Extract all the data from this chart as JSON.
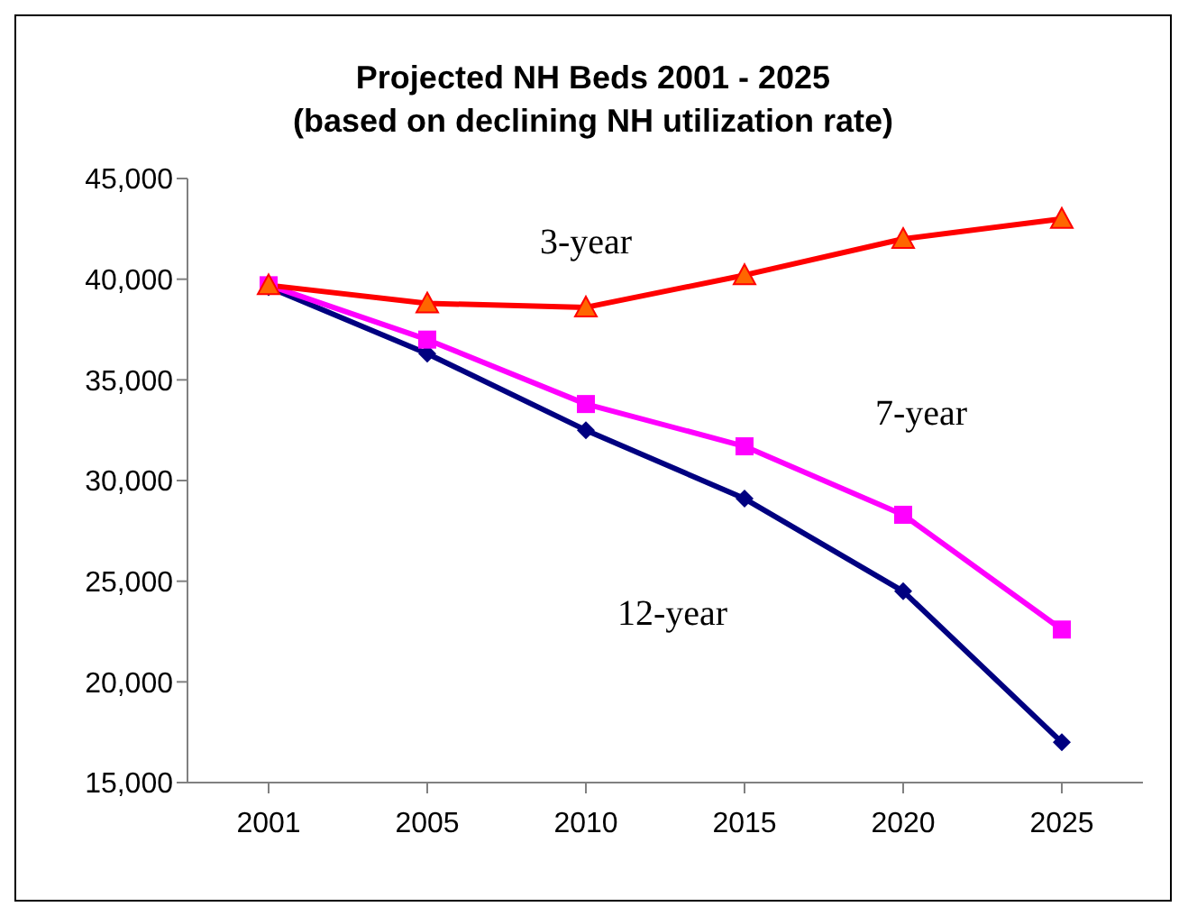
{
  "chart_data": {
    "type": "line",
    "title": "Projected NH Beds 2001 - 2025",
    "subtitle": "(based on declining NH utilization rate)",
    "categories": [
      "2001",
      "2005",
      "2010",
      "2015",
      "2020",
      "2025"
    ],
    "series": [
      {
        "name": "3-year",
        "color": "#ff0000",
        "marker": "triangle",
        "values": [
          39700,
          38800,
          38600,
          40200,
          42000,
          43000
        ]
      },
      {
        "name": "7-year",
        "color": "#ff00ff",
        "marker": "square",
        "values": [
          39700,
          37000,
          33800,
          31700,
          28300,
          22600
        ]
      },
      {
        "name": "12-year",
        "color": "#000080",
        "marker": "diamond",
        "values": [
          39600,
          36300,
          32500,
          29100,
          24500,
          17000
        ]
      }
    ],
    "ylim": [
      15000,
      45000
    ],
    "yticks": [
      {
        "value": 15000,
        "label": "15,000"
      },
      {
        "value": 20000,
        "label": "20,000"
      },
      {
        "value": 25000,
        "label": "25,000"
      },
      {
        "value": 30000,
        "label": "30,000"
      },
      {
        "value": 35000,
        "label": "35,000"
      },
      {
        "value": 40000,
        "label": "40,000"
      },
      {
        "value": 45000,
        "label": "45,000"
      }
    ],
    "grid": false,
    "legend": false
  }
}
